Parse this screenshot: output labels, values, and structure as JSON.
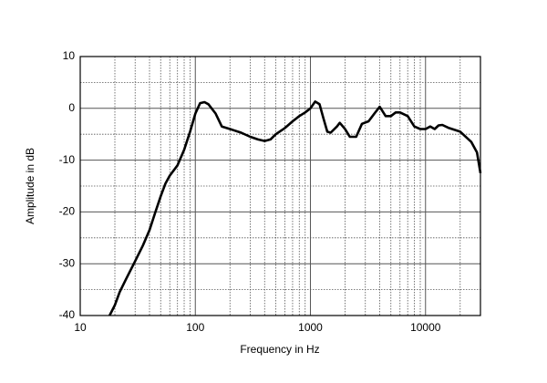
{
  "chart_data": {
    "type": "line",
    "x_label": "Frequency in Hz",
    "y_label": "Amplitude in dB",
    "log_x": true,
    "xlim": [
      10,
      30000
    ],
    "ylim": [
      -40,
      10
    ],
    "xticks": [
      10,
      100,
      1000,
      10000
    ],
    "yticks": [
      -40,
      -30,
      -20,
      -10,
      0,
      10
    ],
    "x_minor_ticks": [
      20,
      30,
      40,
      50,
      60,
      70,
      80,
      90,
      200,
      300,
      400,
      500,
      600,
      700,
      800,
      900,
      2000,
      3000,
      4000,
      5000,
      6000,
      7000,
      8000,
      9000,
      20000
    ],
    "y_minor_ticks": [
      -35,
      -25,
      -15,
      -5,
      5
    ],
    "grid": true,
    "series": [
      {
        "color": "#000000",
        "x": [
          18,
          20,
          22,
          25,
          30,
          35,
          40,
          45,
          50,
          55,
          60,
          70,
          80,
          90,
          100,
          110,
          120,
          130,
          150,
          170,
          200,
          250,
          300,
          350,
          400,
          450,
          500,
          600,
          700,
          800,
          900,
          1000,
          1100,
          1200,
          1300,
          1400,
          1500,
          1700,
          1800,
          2000,
          2200,
          2500,
          2800,
          3200,
          3600,
          4000,
          4500,
          5000,
          5500,
          6000,
          7000,
          8000,
          9000,
          10000,
          11000,
          12000,
          13000,
          14000,
          16000,
          20000,
          25000,
          28000,
          30000
        ],
        "values": [
          -40,
          -38,
          -35.5,
          -33,
          -29.5,
          -26.5,
          -23.5,
          -20,
          -17,
          -14.5,
          -13,
          -11,
          -8,
          -4.5,
          -1,
          1,
          1.2,
          0.8,
          -1,
          -3.5,
          -4,
          -4.7,
          -5.5,
          -6,
          -6.3,
          -6,
          -5,
          -3.8,
          -2.5,
          -1.5,
          -0.8,
          0,
          1.3,
          0.8,
          -2,
          -4.5,
          -4.7,
          -3.5,
          -2.8,
          -4,
          -5.5,
          -5.5,
          -3,
          -2.5,
          -1,
          0.3,
          -1.5,
          -1.5,
          -0.8,
          -0.8,
          -1.5,
          -3.5,
          -4,
          -4,
          -3.5,
          -4,
          -3.3,
          -3.2,
          -3.8,
          -4.5,
          -6.5,
          -8.5,
          -12.5
        ]
      }
    ]
  }
}
